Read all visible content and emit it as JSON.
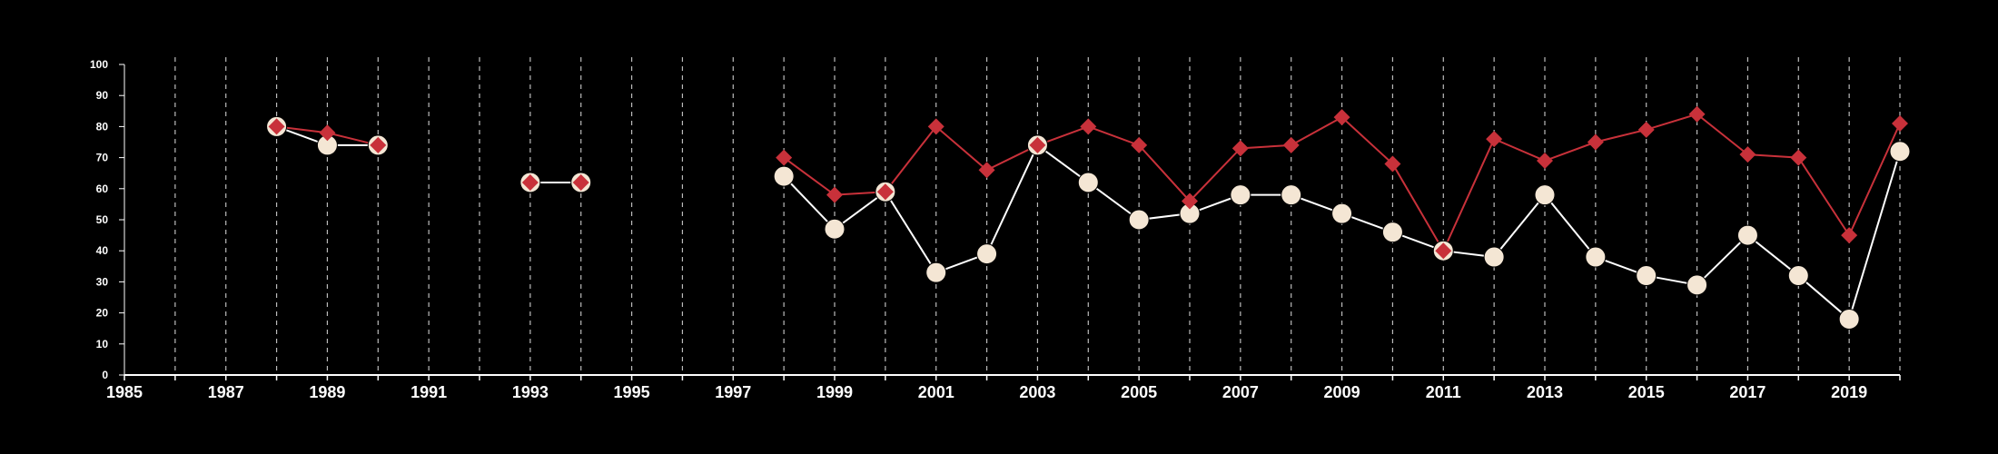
{
  "chart_data": {
    "type": "line",
    "title": "",
    "xlabel": "",
    "ylabel": "",
    "xlim": [
      1985,
      2020
    ],
    "ylim": [
      0,
      100
    ],
    "grid": "vertical dashed lines at every year",
    "legend": "none",
    "x_ticks": [
      1985,
      1987,
      1989,
      1991,
      1993,
      1995,
      1997,
      1999,
      2001,
      2003,
      2005,
      2007,
      2009,
      2011,
      2013,
      2015,
      2017,
      2019
    ],
    "y_ticks": [
      0,
      10,
      20,
      30,
      40,
      50,
      60,
      70,
      80,
      90,
      100
    ],
    "colors": {
      "background": "#000000",
      "axis": "#ffffff",
      "grid": "#bbbbbb",
      "series_red": "#c8313a",
      "series_white_line": "#ffffff",
      "series_white_marker": "#f4e6d4"
    },
    "series": [
      {
        "marker": "diamond",
        "color": "#c8313a",
        "points": [
          [
            1988,
            80
          ],
          [
            1989,
            78
          ],
          [
            1990,
            74
          ],
          [
            1991,
            null
          ],
          [
            1992,
            null
          ],
          [
            1993,
            62
          ],
          [
            1994,
            62
          ],
          [
            1995,
            null
          ],
          [
            1996,
            null
          ],
          [
            1997,
            null
          ],
          [
            1998,
            70
          ],
          [
            1999,
            58
          ],
          [
            2000,
            59
          ],
          [
            2001,
            80
          ],
          [
            2002,
            66
          ],
          [
            2003,
            74
          ],
          [
            2004,
            80
          ],
          [
            2005,
            74
          ],
          [
            2006,
            56
          ],
          [
            2007,
            73
          ],
          [
            2008,
            74
          ],
          [
            2009,
            83
          ],
          [
            2010,
            68
          ],
          [
            2011,
            40
          ],
          [
            2012,
            76
          ],
          [
            2013,
            69
          ],
          [
            2014,
            75
          ],
          [
            2015,
            79
          ],
          [
            2016,
            84
          ],
          [
            2017,
            71
          ],
          [
            2018,
            70
          ],
          [
            2019,
            45
          ],
          [
            2020,
            81
          ]
        ]
      },
      {
        "marker": "circle",
        "color": "#f4e6d4",
        "points": [
          [
            1988,
            80
          ],
          [
            1989,
            74
          ],
          [
            1990,
            74
          ],
          [
            1991,
            null
          ],
          [
            1992,
            null
          ],
          [
            1993,
            62
          ],
          [
            1994,
            62
          ],
          [
            1995,
            null
          ],
          [
            1996,
            null
          ],
          [
            1997,
            null
          ],
          [
            1998,
            64
          ],
          [
            1999,
            47
          ],
          [
            2000,
            59
          ],
          [
            2001,
            33
          ],
          [
            2002,
            39
          ],
          [
            2003,
            74
          ],
          [
            2004,
            62
          ],
          [
            2005,
            50
          ],
          [
            2006,
            52
          ],
          [
            2007,
            58
          ],
          [
            2008,
            58
          ],
          [
            2009,
            52
          ],
          [
            2010,
            46
          ],
          [
            2011,
            40
          ],
          [
            2012,
            38
          ],
          [
            2013,
            58
          ],
          [
            2014,
            38
          ],
          [
            2015,
            32
          ],
          [
            2016,
            29
          ],
          [
            2017,
            45
          ],
          [
            2018,
            32
          ],
          [
            2019,
            18
          ],
          [
            2020,
            72
          ]
        ]
      }
    ]
  }
}
